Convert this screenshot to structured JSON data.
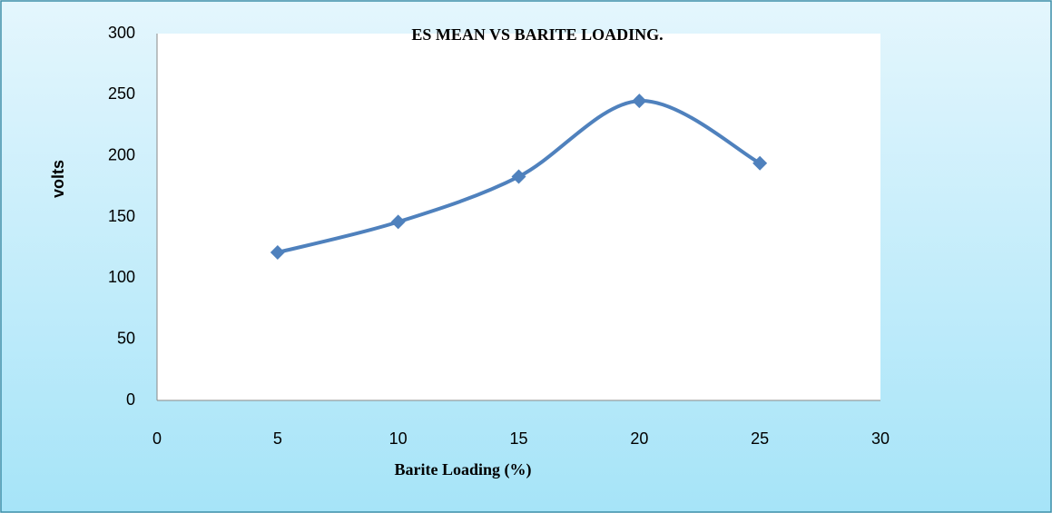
{
  "chart_data": {
    "type": "scatter",
    "title": "ES MEAN VS BARITE LOADING.",
    "x_label": "Barite Loading (%)",
    "y_label": "volts",
    "series": [
      {
        "name": "ES mean",
        "color": "#4f81bd",
        "x": [
          5,
          10,
          15,
          20,
          25
        ],
        "values": [
          121,
          146,
          183,
          245,
          194
        ]
      }
    ],
    "xlim": [
      0,
      30
    ],
    "xticks": [
      0,
      5,
      10,
      15,
      20,
      25,
      30
    ],
    "ylim": [
      0,
      300
    ],
    "yticks": [
      0,
      50,
      100,
      150,
      200,
      250,
      300
    ],
    "smooth": true,
    "grid": false
  }
}
